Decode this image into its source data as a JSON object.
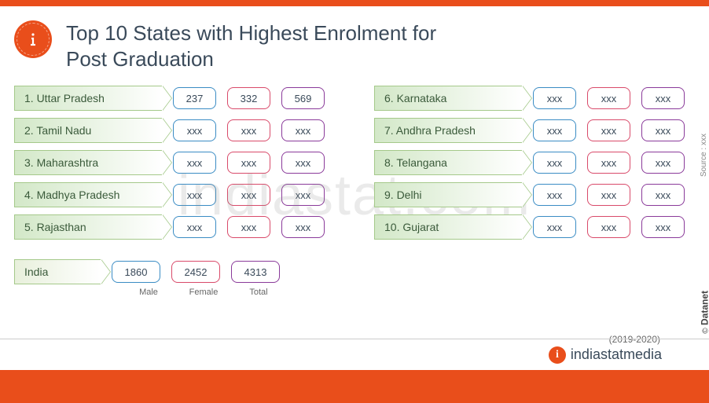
{
  "title": "Top 10 States with Highest Enrolment for\nPost Graduation",
  "year_label": "(2019-2020)",
  "watermark": "indiastat.com",
  "footer_brand": "indiastatmedia",
  "source_label": "Source : xxx",
  "datanet_label": "Datanet",
  "copyright_symbol": "©",
  "colors": {
    "accent": "#e94e1b",
    "male_border": "#3a8cc4",
    "female_border": "#d94a6a",
    "total_border": "#8a3a9a",
    "arrow_border": "#a5c98a",
    "arrow_grad_start": "#d3e8c8",
    "text": "#3a4a5a"
  },
  "pill_headers": {
    "male": "Male",
    "female": "Female",
    "total": "Total"
  },
  "left": [
    {
      "rank": "1.",
      "name": "Uttar Pradesh",
      "male": "237",
      "female": "332",
      "total": "569"
    },
    {
      "rank": "2.",
      "name": "Tamil Nadu",
      "male": "xxx",
      "female": "xxx",
      "total": "xxx"
    },
    {
      "rank": "3.",
      "name": "Maharashtra",
      "male": "xxx",
      "female": "xxx",
      "total": "xxx"
    },
    {
      "rank": "4.",
      "name": "Madhya Pradesh",
      "male": "xxx",
      "female": "xxx",
      "total": "xxx"
    },
    {
      "rank": "5.",
      "name": "Rajasthan",
      "male": "xxx",
      "female": "xxx",
      "total": "xxx"
    }
  ],
  "right": [
    {
      "rank": "6.",
      "name": "Karnataka",
      "male": "xxx",
      "female": "xxx",
      "total": "xxx"
    },
    {
      "rank": "7.",
      "name": "Andhra Pradesh",
      "male": "xxx",
      "female": "xxx",
      "total": "xxx"
    },
    {
      "rank": "8.",
      "name": "Telangana",
      "male": "xxx",
      "female": "xxx",
      "total": "xxx"
    },
    {
      "rank": "9.",
      "name": "Delhi",
      "male": "xxx",
      "female": "xxx",
      "total": "xxx"
    },
    {
      "rank": "10.",
      "name": "Gujarat",
      "male": "xxx",
      "female": "xxx",
      "total": "xxx"
    }
  ],
  "india": {
    "name": "India",
    "male": "1860",
    "female": "2452",
    "total": "4313"
  }
}
